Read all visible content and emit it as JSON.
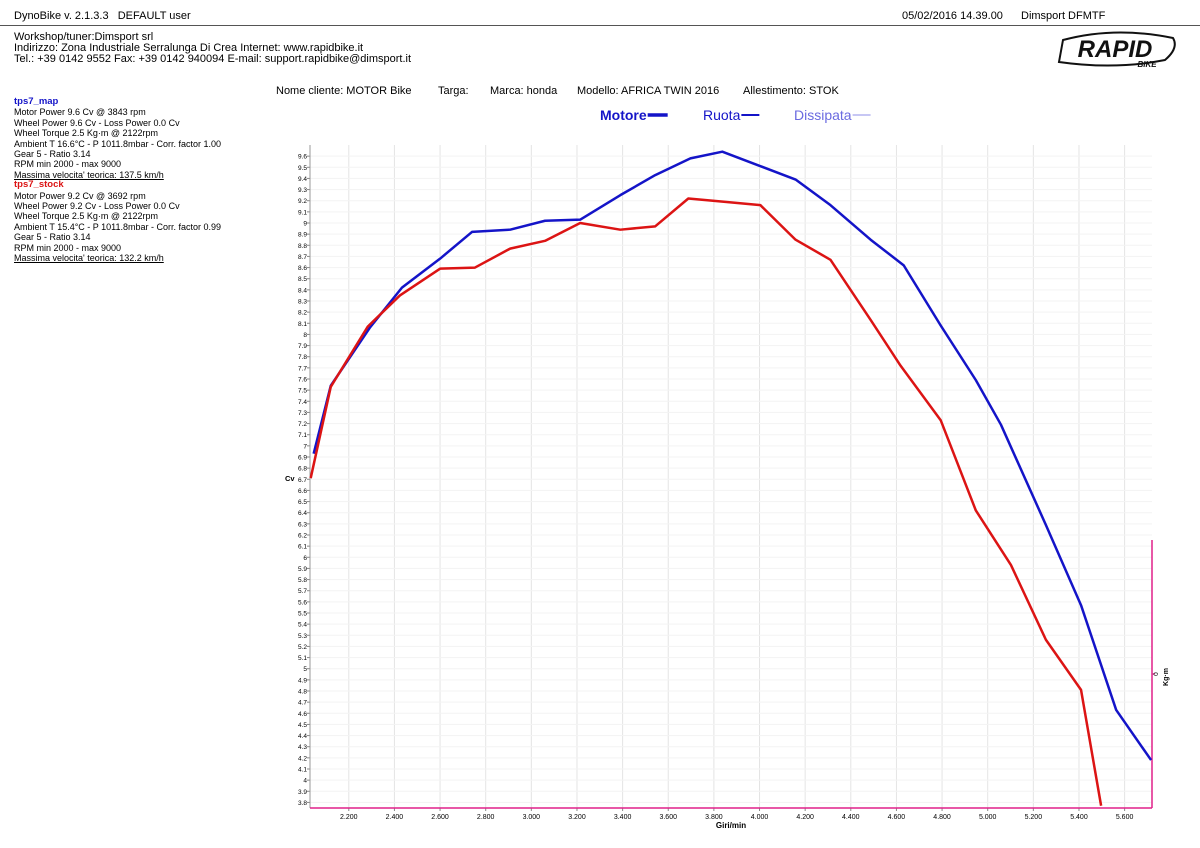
{
  "header": {
    "app": "DynoBike v. 2.1.3.3   DEFAULT user",
    "datetime": "05/02/2016 14.39.00",
    "station": "Dimsport DFMTF",
    "workshop": "Workshop/tuner:Dimsport srl",
    "address": "Indirizzo: Zona Industriale Serralunga Di Crea Internet: www.rapidbike.it",
    "contacts": "Tel.: +39 0142 9552 Fax: +39 0142 940094 E-mail: support.rapidbike@dimsport.it",
    "logo": "RAPID",
    "logo_sub": "BIKE"
  },
  "customer": [
    "Nome cliente: MOTOR Bike",
    "Targa:",
    "Marca: honda",
    "Modello: AFRICA TWIN 2016",
    "Allestimento: STOK"
  ],
  "run_info": [
    [
      "Motor Power 9.6 Cv  @ 3843 rpm",
      "Wheel Power 9.6 Cv  - Loss Power 0.0 Cv",
      "Wheel Torque 2.5 Kg·m  @ 2122rpm",
      "Ambient T 16.6°C - P 1011.8mbar - Corr. factor 1.00",
      "Gear 5 - Ratio 3.14",
      "RPM min 2000 - max 9000",
      "Massima velocita' teorica: 137.5 km/h"
    ],
    [
      "Motor Power 9.2 Cv  @ 3692 rpm",
      "Wheel Power 9.2 Cv  - Loss Power 0.0 Cv",
      "Wheel Torque 2.5 Kg·m  @ 2122rpm",
      "Ambient T 15.4°C - P 1011.8mbar - Corr. factor 0.99",
      "Gear 5 - Ratio 3.14",
      "RPM min 2000 - max 9000",
      "Massima velocita' teorica: 132.2 km/h"
    ]
  ],
  "chart_data": {
    "type": "line",
    "legend_items": [
      {
        "name": "Motore",
        "color": "#1414c8"
      },
      {
        "name": "Ruota",
        "color": "#1414c8"
      },
      {
        "name": "Dissipata",
        "color": "#6a6ae0"
      }
    ],
    "x_label": "Giri/min",
    "y_label": "Cv",
    "y2_label": "Kg·m",
    "grid": true,
    "xlim": [
      2030,
      5720
    ],
    "ylim": [
      3.75,
      9.7
    ],
    "y2lim": [
      -1,
      1
    ],
    "y2ticks": [
      0
    ],
    "xticks": [
      {
        "value": 2200,
        "label": "2.200"
      },
      {
        "value": 2400,
        "label": "2.400"
      },
      {
        "value": 2600,
        "label": "2.600"
      },
      {
        "value": 2800,
        "label": "2.800"
      },
      {
        "value": 3000,
        "label": "3.000"
      },
      {
        "value": 3200,
        "label": "3.200"
      },
      {
        "value": 3400,
        "label": "3.400"
      },
      {
        "value": 3600,
        "label": "3.600"
      },
      {
        "value": 3800,
        "label": "3.800"
      },
      {
        "value": 4000,
        "label": "4.000"
      },
      {
        "value": 4200,
        "label": "4.200"
      },
      {
        "value": 4400,
        "label": "4.400"
      },
      {
        "value": 4600,
        "label": "4.600"
      },
      {
        "value": 4800,
        "label": "4.800"
      },
      {
        "value": 5000,
        "label": "5.000"
      },
      {
        "value": 5200,
        "label": "5.200"
      },
      {
        "value": 5400,
        "label": "5.400"
      },
      {
        "value": 5600,
        "label": "5.600"
      }
    ],
    "yticks": [
      3.8,
      3.9,
      4,
      4.1,
      4.2,
      4.3,
      4.4,
      4.5,
      4.6,
      4.7,
      4.8,
      4.9,
      5,
      5.1,
      5.2,
      5.3,
      5.4,
      5.5,
      5.6,
      5.7,
      5.8,
      5.9,
      6,
      6.1,
      6.2,
      6.3,
      6.4,
      6.5,
      6.6,
      6.7,
      6.8,
      6.9,
      7,
      7.1,
      7.2,
      7.3,
      7.4,
      7.5,
      7.6,
      7.7,
      7.8,
      7.9,
      8,
      8.1,
      8.2,
      8.3,
      8.4,
      8.5,
      8.6,
      8.7,
      8.8,
      8.9,
      9,
      9.1,
      9.2,
      9.3,
      9.4,
      9.5,
      9.6
    ],
    "series": [
      {
        "name": "tps7_map",
        "color": "#1414c8",
        "x": [
          2046,
          2121,
          2292,
          2433,
          2600,
          2740,
          2907,
          3060,
          3214,
          3390,
          3543,
          3697,
          3837,
          4004,
          4158,
          4311,
          4487,
          4632,
          4794,
          4948,
          5058,
          5255,
          5409,
          5563,
          5716
        ],
        "values": [
          6.93,
          7.54,
          8.06,
          8.42,
          8.68,
          8.92,
          8.94,
          9.02,
          9.03,
          9.25,
          9.43,
          9.58,
          9.64,
          9.51,
          9.39,
          9.16,
          8.85,
          8.62,
          8.08,
          7.59,
          7.19,
          6.29,
          5.57,
          4.63,
          4.18
        ]
      },
      {
        "name": "tps7_stock",
        "color": "#dc1414",
        "x": [
          2033,
          2121,
          2283,
          2424,
          2600,
          2753,
          2907,
          3060,
          3214,
          3390,
          3543,
          3688,
          3850,
          4004,
          4158,
          4311,
          4487,
          4618,
          4794,
          4948,
          5102,
          5255,
          5409,
          5497
        ],
        "values": [
          6.71,
          7.53,
          8.07,
          8.35,
          8.59,
          8.6,
          8.77,
          8.84,
          9.0,
          8.94,
          8.97,
          9.22,
          9.19,
          9.16,
          8.85,
          8.67,
          8.13,
          7.72,
          7.23,
          6.42,
          5.93,
          5.26,
          4.81,
          3.77
        ]
      }
    ]
  }
}
